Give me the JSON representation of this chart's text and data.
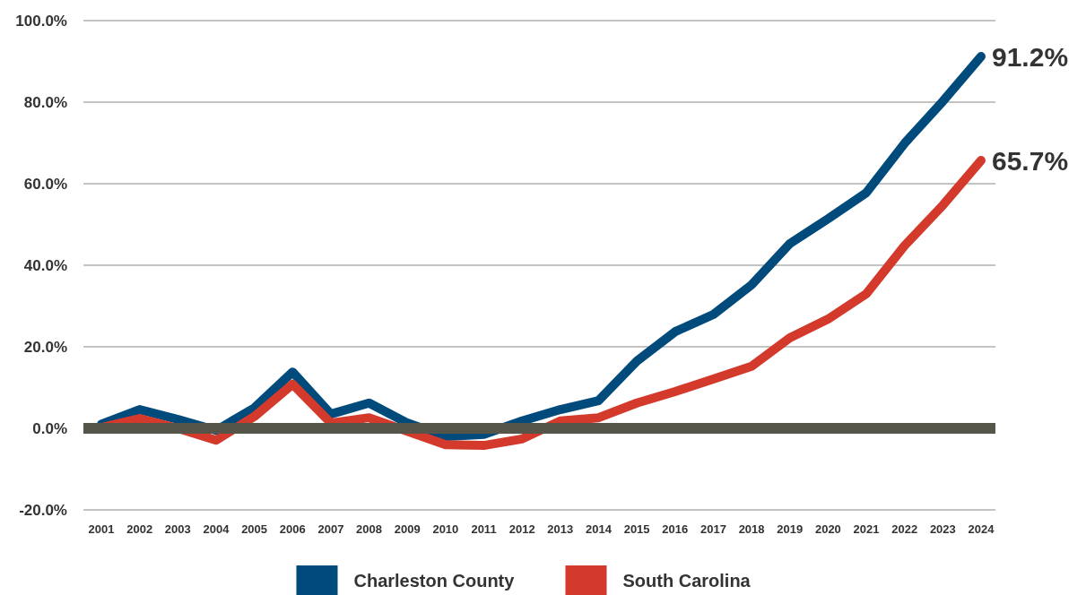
{
  "chart_data": {
    "type": "line",
    "categories": [
      "2001",
      "2002",
      "2003",
      "2004",
      "2005",
      "2006",
      "2007",
      "2008",
      "2009",
      "2010",
      "2011",
      "2012",
      "2013",
      "2014",
      "2015",
      "2016",
      "2017",
      "2018",
      "2019",
      "2020",
      "2021",
      "2022",
      "2023",
      "2024"
    ],
    "series": [
      {
        "name": "Charleston County",
        "color": "#004a7c",
        "values": [
          1,
          4.6,
          2.2,
          -0.5,
          5,
          13.8,
          3.5,
          6.2,
          1.3,
          -2,
          -1.5,
          1.8,
          4.6,
          6.8,
          16.5,
          23.7,
          27.9,
          35.2,
          45.3,
          51.4,
          57.8,
          69.9,
          80.2,
          91.2
        ],
        "value_labels": [
          null,
          null,
          null,
          null,
          null,
          null,
          null,
          null,
          null,
          null,
          null,
          null,
          null,
          null,
          null,
          null,
          null,
          null,
          null,
          null,
          null,
          null,
          null,
          "91.2%"
        ]
      },
      {
        "name": "South Carolina",
        "color": "#d33a2c",
        "values": [
          0.2,
          2.4,
          0,
          -2.9,
          2.9,
          10.8,
          1.3,
          2.6,
          -0.7,
          -4,
          -4.2,
          -2.6,
          1.8,
          2.6,
          6.2,
          9,
          12.1,
          15.2,
          22.2,
          26.8,
          33,
          44.8,
          54.7,
          65.7
        ],
        "value_labels": [
          null,
          null,
          null,
          null,
          null,
          null,
          null,
          null,
          null,
          null,
          null,
          null,
          null,
          null,
          null,
          null,
          null,
          null,
          null,
          null,
          null,
          null,
          null,
          "65.7%"
        ]
      }
    ],
    "ylim": [
      -20,
      100
    ],
    "yticks": [
      {
        "value": -20,
        "label": "-20.0%"
      },
      {
        "value": 0,
        "label": "0.0%"
      },
      {
        "value": 20,
        "label": "20.0%"
      },
      {
        "value": 40,
        "label": "40.0%"
      },
      {
        "value": 60,
        "label": "60.0%"
      },
      {
        "value": 80,
        "label": "80.0%"
      },
      {
        "value": 100,
        "label": "100.0%"
      }
    ],
    "ref_lines": [
      {
        "axis": "y",
        "value": 0,
        "color": "#55554a"
      }
    ],
    "grid": "y",
    "legend": "bottom",
    "marker": "none",
    "line_style": "solid"
  }
}
